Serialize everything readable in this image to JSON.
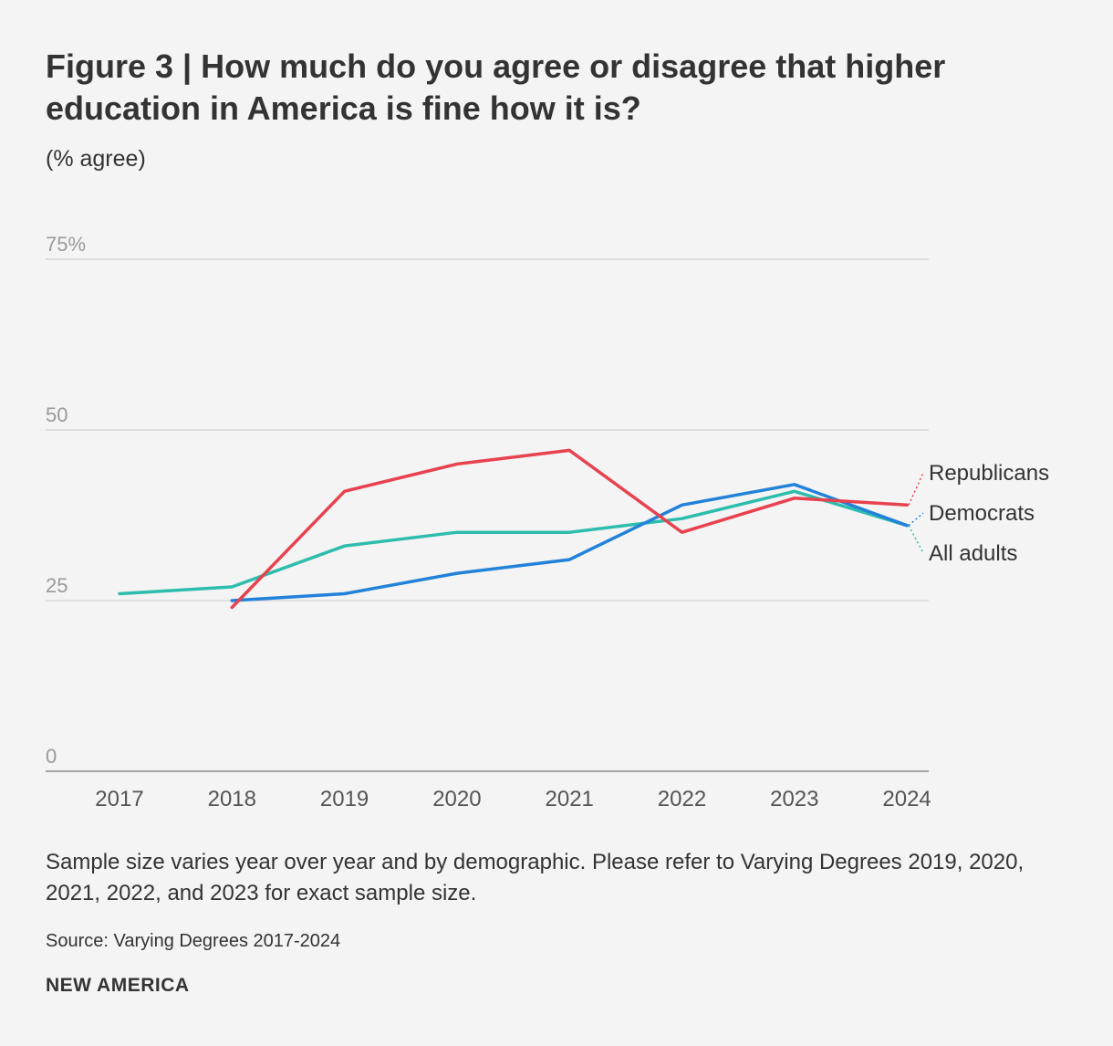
{
  "header": {
    "title": "Figure 3 | How much do you agree or disagree that higher education in America is fine how it is?",
    "subtitle": "(% agree)"
  },
  "footer": {
    "note": "Sample size varies year over year and by demographic. Please refer to Varying Degrees 2019, 2020, 2021, 2022, and 2023 for exact sample size.",
    "source": "Source: Varying Degrees 2017-2024",
    "brand": "NEW AMERICA"
  },
  "chart_data": {
    "type": "line",
    "title": "Figure 3 | How much do you agree or disagree that higher education in America is fine how it is?",
    "ylabel": "(% agree)",
    "xlabel": "",
    "categories": [
      "2017",
      "2018",
      "2019",
      "2020",
      "2021",
      "2022",
      "2023",
      "2024"
    ],
    "ylim": [
      0,
      75
    ],
    "yticks": [
      0,
      25,
      50,
      75
    ],
    "ytick_labels": [
      "0",
      "25",
      "50",
      "75%"
    ],
    "grid": true,
    "series": [
      {
        "name": "Republicans",
        "color": "#e8424f",
        "values": [
          null,
          24,
          41,
          45,
          47,
          35,
          40,
          39
        ]
      },
      {
        "name": "Democrats",
        "color": "#2282d9",
        "values": [
          null,
          25,
          26,
          29,
          31,
          39,
          42,
          36
        ]
      },
      {
        "name": "All adults",
        "color": "#2dbdad",
        "values": [
          26,
          27,
          33,
          35,
          35,
          37,
          41,
          36
        ]
      }
    ],
    "legend": "right-end-labels"
  }
}
